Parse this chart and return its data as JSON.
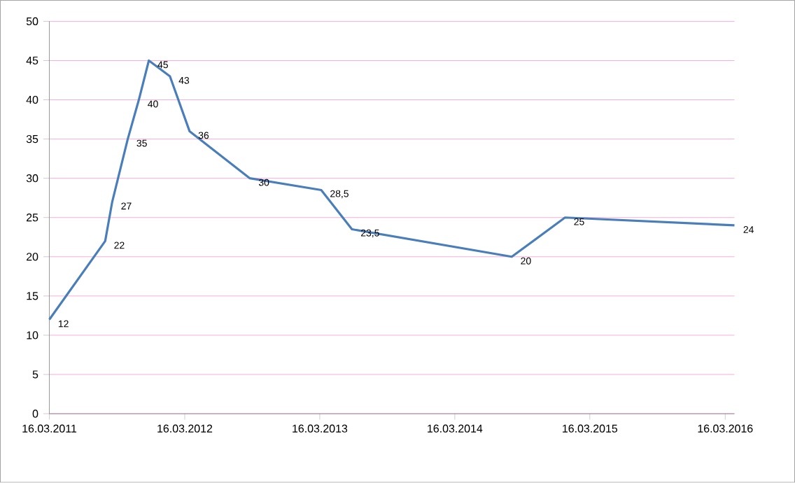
{
  "chart_data": {
    "type": "line",
    "color": "#4a7ebb",
    "x": [
      "2011-03-16",
      "2011-08-14",
      "2011-09-02",
      "2011-10-14",
      "2011-11-13",
      "2011-12-10",
      "2012-02-05",
      "2012-03-29",
      "2012-09-08",
      "2013-03-20",
      "2013-06-11",
      "2014-08-17",
      "2015-01-08",
      "2016-04-10"
    ],
    "values": [
      12,
      22,
      27,
      35,
      40,
      45,
      43,
      36,
      30,
      28.5,
      23.5,
      20,
      25,
      24
    ],
    "value_labels": [
      "12",
      "22",
      "27",
      "35",
      "40",
      "45",
      "43",
      "36",
      "30",
      "28,5",
      "23,5",
      "20",
      "25",
      "24"
    ],
    "xlim": [
      "2011-03-16",
      "2016-04-10"
    ],
    "xticks": [
      {
        "value": "2011-03-16",
        "label": "16.03.2011"
      },
      {
        "value": "2012-03-16",
        "label": "16.03.2012"
      },
      {
        "value": "2013-03-16",
        "label": "16.03.2013"
      },
      {
        "value": "2014-03-16",
        "label": "16.03.2014"
      },
      {
        "value": "2015-03-16",
        "label": "16.03.2015"
      },
      {
        "value": "2016-03-16",
        "label": "16.03.2016"
      }
    ],
    "ylim": [
      0,
      50
    ],
    "yticks": [
      0,
      5,
      10,
      15,
      20,
      25,
      30,
      35,
      40,
      45,
      50
    ],
    "grid": "y",
    "marker": "none",
    "line_style": "solid"
  }
}
